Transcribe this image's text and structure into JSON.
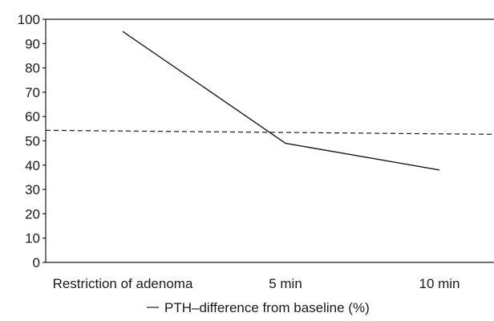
{
  "chart_data": {
    "type": "line",
    "categories": [
      "Restriction of adenoma",
      "5 min",
      "10 min"
    ],
    "series": [
      {
        "name": "PTH–difference from baseline (%)",
        "values": [
          95,
          49,
          38
        ],
        "style": "solid",
        "color": "#1a1a1a"
      }
    ],
    "reference_line": {
      "y": 54,
      "style": "dashed",
      "color": "#1a1a1a"
    },
    "yticks": [
      0,
      10,
      20,
      30,
      40,
      50,
      60,
      70,
      80,
      90,
      100
    ],
    "ylim": [
      0,
      100
    ],
    "title": "",
    "xlabel": "",
    "ylabel": "",
    "legend": {
      "position": "bottom-center",
      "label": "PTH–difference from baseline (%)"
    },
    "grid": false
  }
}
